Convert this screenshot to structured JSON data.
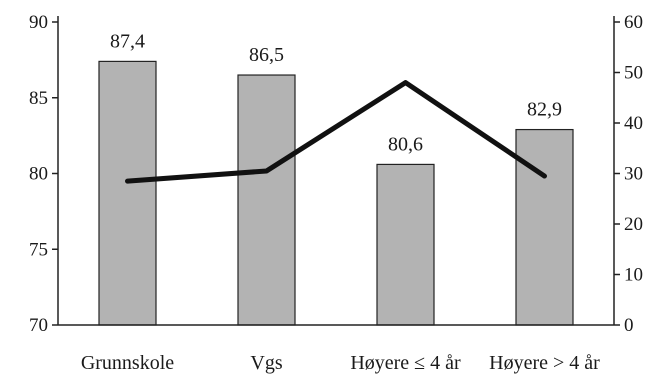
{
  "chart_data": {
    "type": "bar",
    "title": "",
    "xlabel": "",
    "ylabel": "",
    "categories": [
      "Grunnskole",
      "Vgs",
      "Høyere ≤ 4 år",
      "Høyere > 4 år"
    ],
    "series": [
      {
        "type": "bar",
        "axis": "left",
        "values": [
          87.4,
          86.5,
          80.6,
          82.9
        ],
        "data_labels": [
          "87,4",
          "86,5",
          "80,6",
          "82,9"
        ],
        "color": "#b3b3b3"
      },
      {
        "type": "line",
        "axis": "right",
        "values": [
          28.5,
          30.5,
          48,
          29.5
        ],
        "color": "#111111"
      }
    ],
    "ylim_left": [
      70,
      90
    ],
    "yticks_left": [
      "70",
      "75",
      "80",
      "85",
      "90"
    ],
    "ylim_right": [
      0,
      60
    ],
    "yticks_right": [
      "0",
      "10",
      "20",
      "30",
      "40",
      "50",
      "60"
    ],
    "grid": false,
    "legend": "none"
  }
}
